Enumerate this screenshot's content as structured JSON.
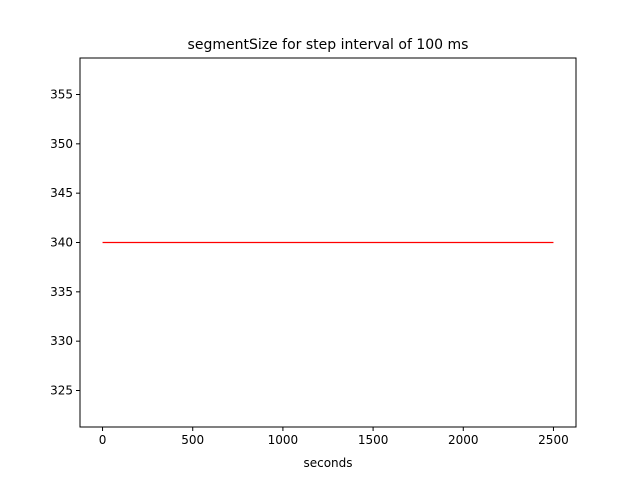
{
  "chart_data": {
    "type": "line",
    "title": "segmentSize for step interval of 100 ms",
    "xlabel": "seconds",
    "ylabel": "",
    "xlim": [
      -125,
      2625
    ],
    "ylim": [
      321.3,
      358.7
    ],
    "xticks": [
      0,
      500,
      1000,
      1500,
      2000,
      2500
    ],
    "yticks": [
      325,
      330,
      335,
      340,
      345,
      350,
      355
    ],
    "grid": false,
    "series": [
      {
        "color": "#ff0000",
        "x": [
          0,
          2500
        ],
        "y": [
          340,
          340
        ]
      }
    ]
  }
}
